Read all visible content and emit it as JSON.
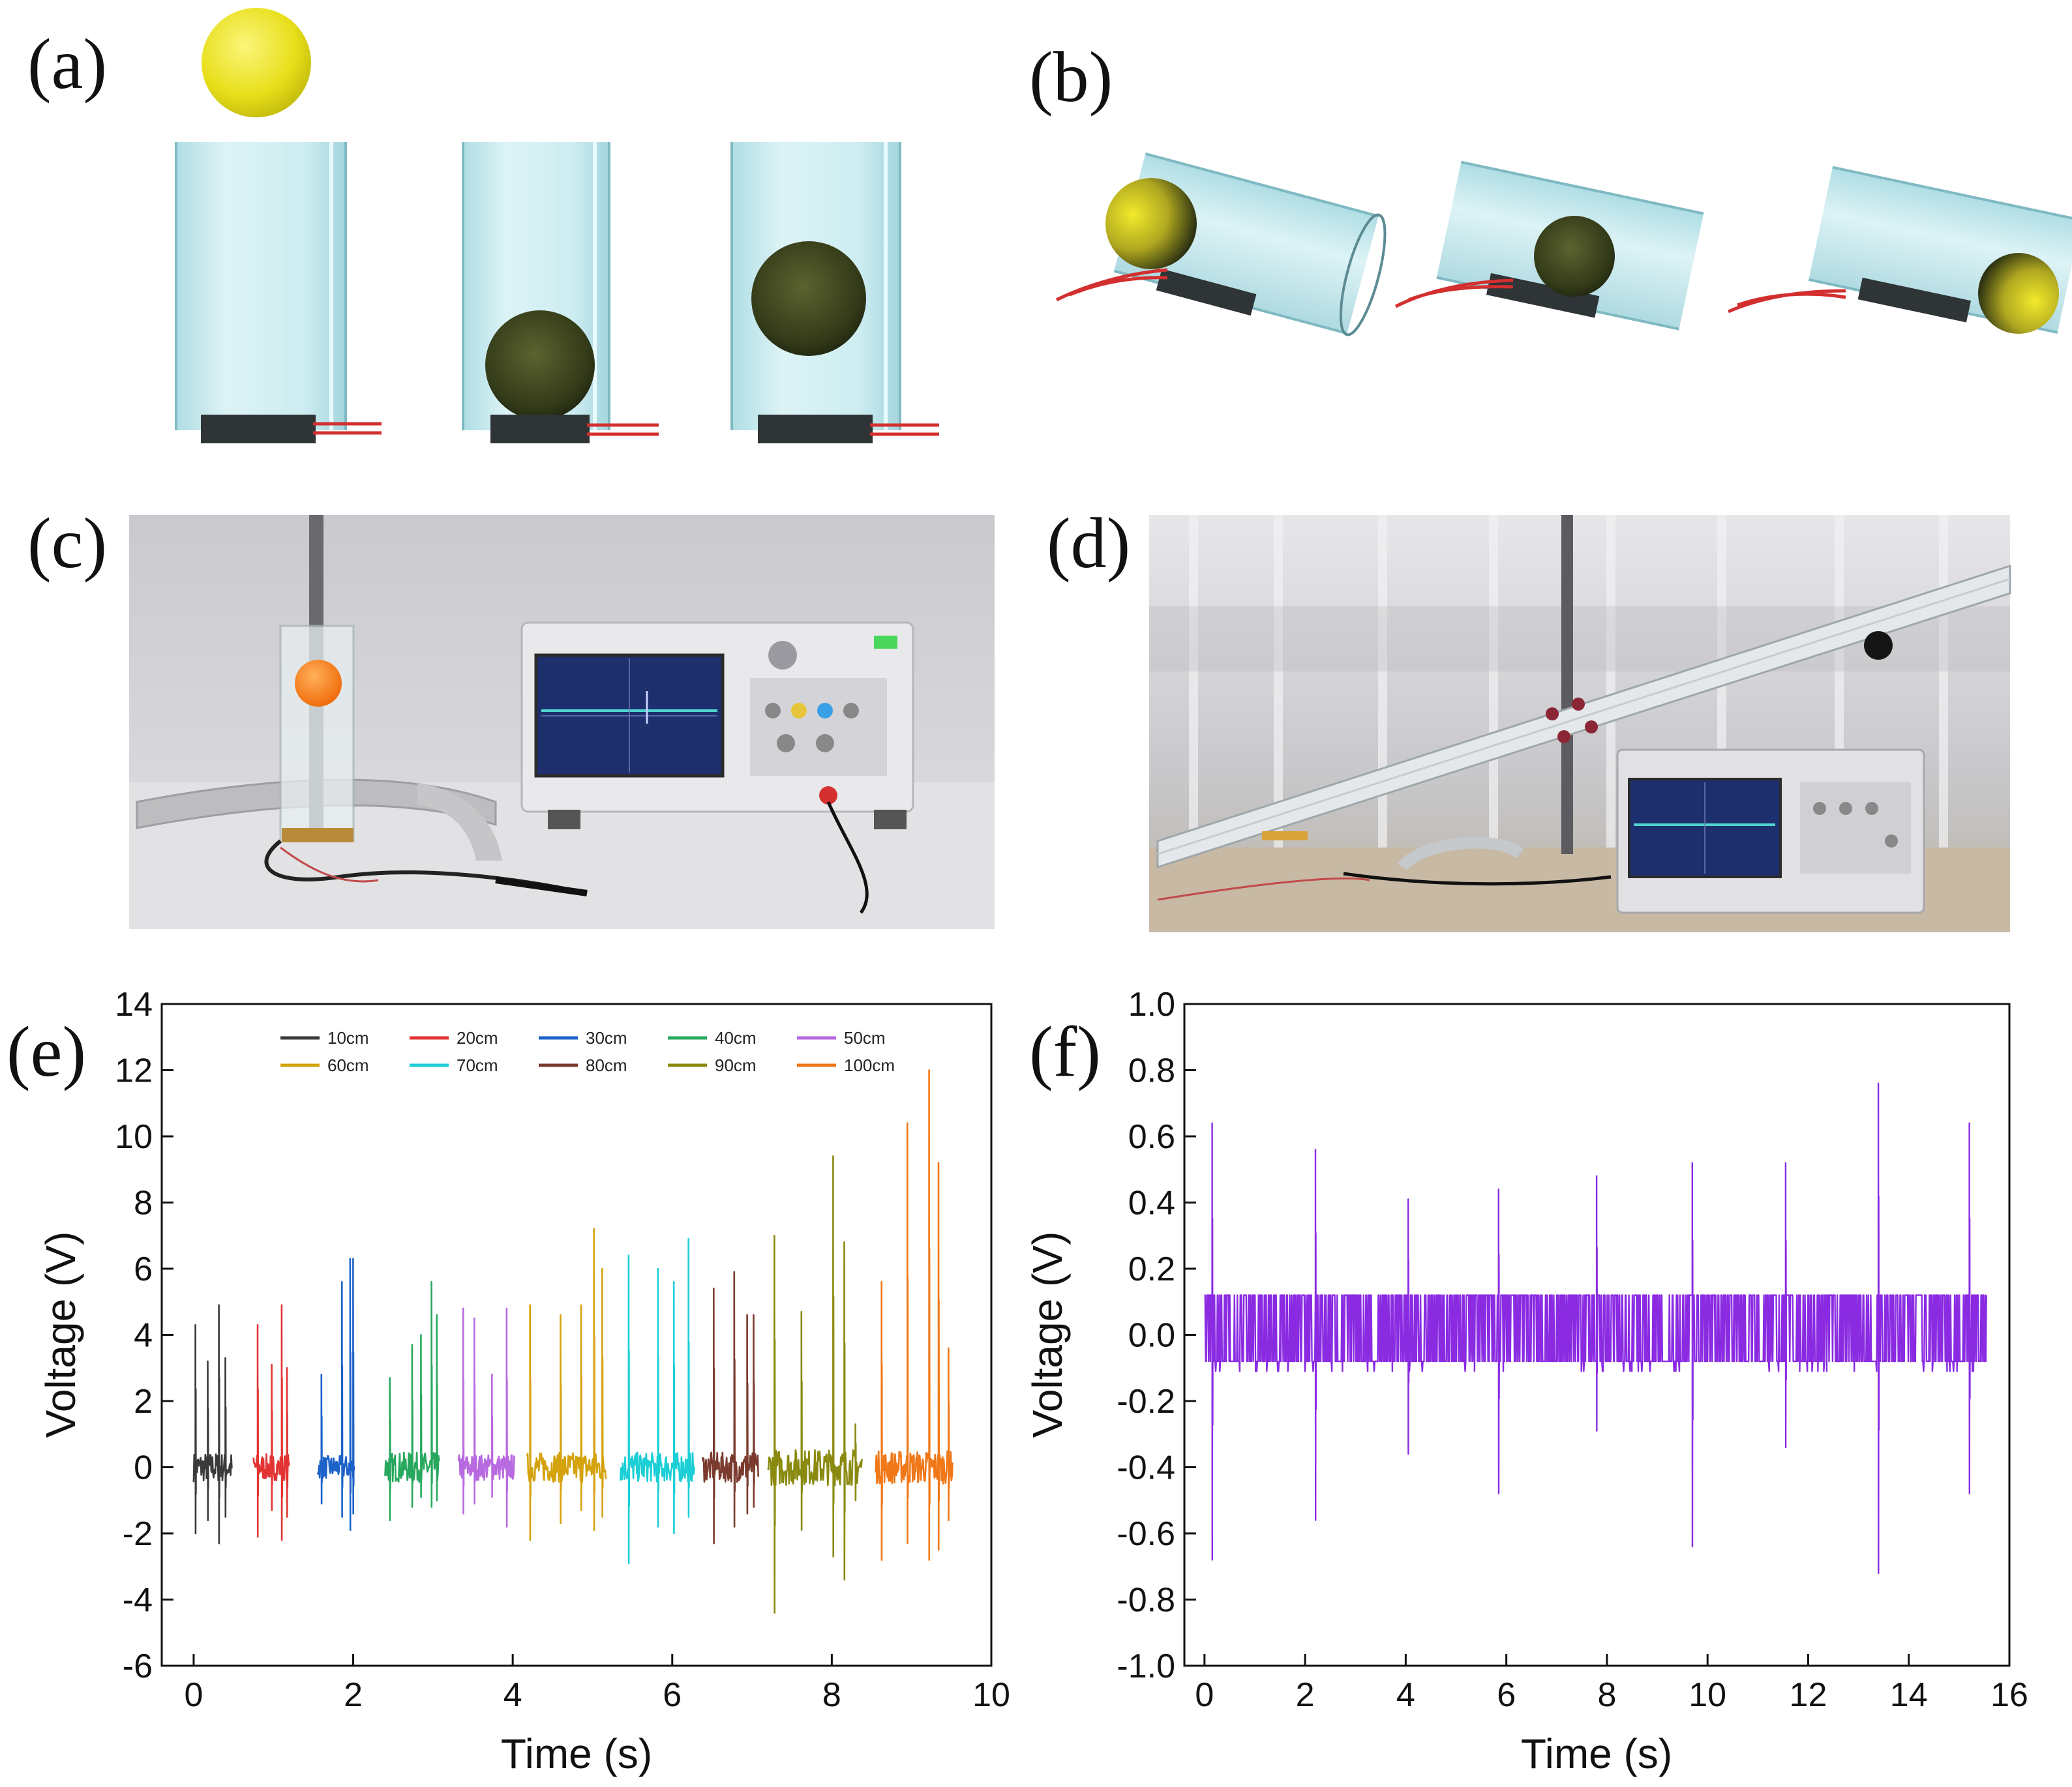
{
  "panels": {
    "a": "(a)",
    "b": "(b)",
    "c": "(c)",
    "d": "(d)",
    "e": "(e)",
    "f": "(f)"
  },
  "colors": {
    "tube": "#bfe8ee",
    "ball_yellow": "#f2ea2a",
    "ball_dark": "#3f4a1f",
    "wire": "#d32f2f",
    "plate": "#2f3436",
    "scope_screen": "#1d2f6d",
    "trace": "#4fd4d0",
    "photo_bg_c": "#d9d9dd",
    "photo_bg_d": "#cfcfd2",
    "ping_pong": "#ff8a1f"
  },
  "chart_data": [
    {
      "type": "line",
      "panel": "e",
      "xlabel": "Time (s)",
      "ylabel": "Voltage (V)",
      "xlim": [
        -0.4,
        10
      ],
      "ylim": [
        -6,
        14
      ],
      "xticks": [
        0,
        2,
        4,
        6,
        8,
        10
      ],
      "yticks": [
        -6,
        -4,
        -2,
        0,
        2,
        4,
        6,
        8,
        10,
        12,
        14
      ],
      "legend_position": "top-center",
      "series": [
        {
          "name": "10cm",
          "color": "#3a3a3a",
          "t_start": 0.0,
          "t_end": 0.48,
          "base_noise": 0.45,
          "peaks": [
            [
              0.02,
              4.3,
              -2.0
            ],
            [
              0.18,
              3.2,
              -1.6
            ],
            [
              0.32,
              4.9,
              -2.3
            ],
            [
              0.4,
              3.3,
              -1.5
            ]
          ]
        },
        {
          "name": "20cm",
          "color": "#e23434",
          "t_start": 0.75,
          "t_end": 1.2,
          "base_noise": 0.4,
          "peaks": [
            [
              0.8,
              4.3,
              -2.1
            ],
            [
              0.98,
              3.1,
              -1.3
            ],
            [
              1.1,
              4.9,
              -2.2
            ],
            [
              1.17,
              3.0,
              -1.5
            ]
          ]
        },
        {
          "name": "30cm",
          "color": "#1d62c9",
          "t_start": 1.55,
          "t_end": 2.02,
          "base_noise": 0.35,
          "peaks": [
            [
              1.6,
              2.8,
              -1.1
            ],
            [
              1.86,
              5.6,
              -1.5
            ],
            [
              1.96,
              6.3,
              -1.9
            ],
            [
              2.0,
              6.3,
              -1.4
            ]
          ]
        },
        {
          "name": "40cm",
          "color": "#28a85e",
          "t_start": 2.4,
          "t_end": 3.08,
          "base_noise": 0.45,
          "peaks": [
            [
              2.46,
              2.7,
              -1.6
            ],
            [
              2.74,
              3.7,
              -1.2
            ],
            [
              2.85,
              4.0,
              -0.9
            ],
            [
              2.98,
              5.6,
              -1.2
            ],
            [
              3.05,
              4.6,
              -1.0
            ]
          ]
        },
        {
          "name": "50cm",
          "color": "#b86ae0",
          "t_start": 3.32,
          "t_end": 4.02,
          "base_noise": 0.4,
          "peaks": [
            [
              3.38,
              4.8,
              -1.4
            ],
            [
              3.52,
              4.5,
              -1.1
            ],
            [
              3.74,
              2.8,
              -0.9
            ],
            [
              3.92,
              4.8,
              -1.8
            ]
          ]
        },
        {
          "name": "60cm",
          "color": "#d4a20c",
          "t_start": 4.18,
          "t_end": 5.18,
          "base_noise": 0.45,
          "peaks": [
            [
              4.22,
              4.9,
              -2.2
            ],
            [
              4.6,
              4.6,
              -1.7
            ],
            [
              4.86,
              4.9,
              -1.3
            ],
            [
              5.02,
              7.2,
              -1.9
            ],
            [
              5.12,
              6.0,
              -1.5
            ]
          ]
        },
        {
          "name": "70cm",
          "color": "#1ccfd6",
          "t_start": 5.35,
          "t_end": 6.28,
          "base_noise": 0.45,
          "peaks": [
            [
              5.45,
              6.4,
              -2.9
            ],
            [
              5.82,
              6.0,
              -1.8
            ],
            [
              6.02,
              5.6,
              -2.0
            ],
            [
              6.2,
              6.9,
              -1.5
            ]
          ]
        },
        {
          "name": "80cm",
          "color": "#7a3b2e",
          "t_start": 6.38,
          "t_end": 7.08,
          "base_noise": 0.45,
          "peaks": [
            [
              6.52,
              5.4,
              -2.3
            ],
            [
              6.78,
              5.9,
              -1.8
            ],
            [
              6.94,
              4.6,
              -1.4
            ],
            [
              7.02,
              4.6,
              -1.2
            ]
          ]
        },
        {
          "name": "90cm",
          "color": "#8a8a10",
          "t_start": 7.2,
          "t_end": 8.38,
          "base_noise": 0.55,
          "peaks": [
            [
              7.28,
              7.0,
              -4.4
            ],
            [
              7.62,
              4.7,
              -1.9
            ],
            [
              8.02,
              9.4,
              -2.7
            ],
            [
              8.16,
              6.8,
              -3.4
            ],
            [
              8.3,
              1.3,
              -1.0
            ]
          ]
        },
        {
          "name": "100cm",
          "color": "#f07818",
          "t_start": 8.55,
          "t_end": 9.52,
          "base_noise": 0.5,
          "peaks": [
            [
              8.62,
              5.6,
              -2.8
            ],
            [
              8.95,
              10.4,
              -2.3
            ],
            [
              9.22,
              12.0,
              -2.8
            ],
            [
              9.34,
              9.2,
              -2.5
            ],
            [
              9.46,
              3.6,
              -1.6
            ]
          ]
        }
      ]
    },
    {
      "type": "line",
      "panel": "f",
      "xlabel": "Time (s)",
      "ylabel": "Voltage (V)",
      "xlim": [
        -0.4,
        16
      ],
      "ylim": [
        -1.0,
        1.0
      ],
      "xticks": [
        0,
        2,
        4,
        6,
        8,
        10,
        12,
        14,
        16
      ],
      "yticks": [
        -1.0,
        -0.8,
        -0.6,
        -0.4,
        -0.2,
        0.0,
        0.2,
        0.4,
        0.6,
        0.8,
        1.0
      ],
      "series": [
        {
          "color": "#8a2be2",
          "t_start": 0.0,
          "t_end": 15.55,
          "band": [
            -0.08,
            0.12
          ],
          "peaks": [
            [
              0.15,
              0.64,
              -0.68
            ],
            [
              2.2,
              0.56,
              -0.56
            ],
            [
              4.05,
              0.41,
              -0.36
            ],
            [
              5.85,
              0.44,
              -0.48
            ],
            [
              7.8,
              0.48,
              -0.29
            ],
            [
              9.7,
              0.52,
              -0.64
            ],
            [
              11.55,
              0.52,
              -0.34
            ],
            [
              13.4,
              0.76,
              -0.72
            ],
            [
              15.2,
              0.64,
              -0.48
            ]
          ]
        }
      ]
    }
  ]
}
